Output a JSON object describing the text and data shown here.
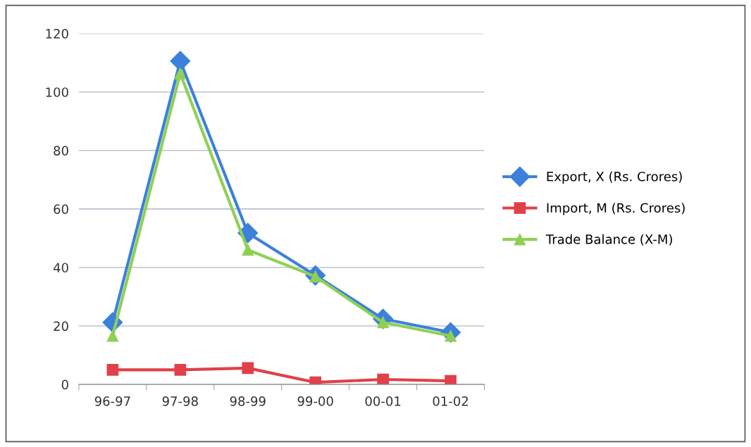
{
  "chart_data": {
    "type": "line",
    "categories": [
      "96-97",
      "97-98",
      "98-99",
      "99-00",
      "00-01",
      "01-02"
    ],
    "series": [
      {
        "name": "Export, X (Rs. Crores)",
        "color": "#3b80dc",
        "marker": "diamond",
        "values": [
          21.2,
          110.6,
          51.8,
          37.3,
          22.4,
          17.8
        ]
      },
      {
        "name": "Import, M (Rs. Crores)",
        "color": "#e0404a",
        "marker": "square",
        "values": [
          5,
          5,
          5.6,
          0.7,
          1.7,
          1.2
        ]
      },
      {
        "name": "Trade Balance (X-M)",
        "color": "#8fd054",
        "marker": "triangle",
        "values": [
          16.6,
          106.3,
          46,
          36.9,
          21.2,
          16.6
        ]
      }
    ],
    "ylim": [
      0,
      120
    ],
    "yticks": [
      0,
      20,
      40,
      60,
      80,
      100,
      120
    ],
    "grid": "y",
    "legend": "right"
  }
}
